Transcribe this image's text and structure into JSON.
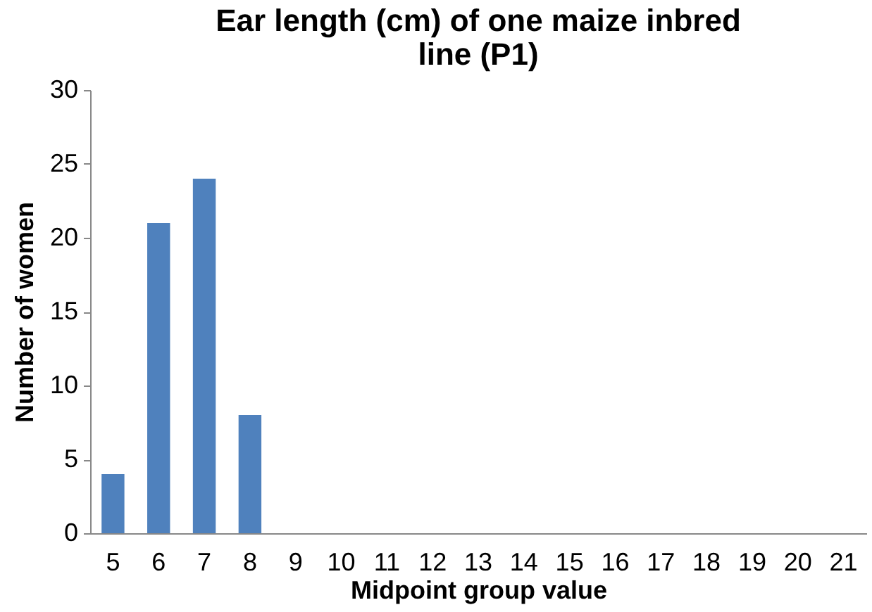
{
  "chart_data": {
    "type": "bar",
    "title": "Ear length (cm) of one maize inbred line (P1)",
    "xlabel": "Midpoint group value",
    "ylabel": "Number of women",
    "categories": [
      "5",
      "6",
      "7",
      "8",
      "9",
      "10",
      "11",
      "12",
      "13",
      "14",
      "15",
      "16",
      "17",
      "18",
      "19",
      "20",
      "21"
    ],
    "values": [
      4,
      21,
      24,
      8,
      0,
      0,
      0,
      0,
      0,
      0,
      0,
      0,
      0,
      0,
      0,
      0,
      0
    ],
    "color": "#4f81bd",
    "ylim": [
      0,
      30
    ],
    "yticks": [
      0,
      5,
      10,
      15,
      20,
      25,
      30
    ],
    "grid": false
  }
}
